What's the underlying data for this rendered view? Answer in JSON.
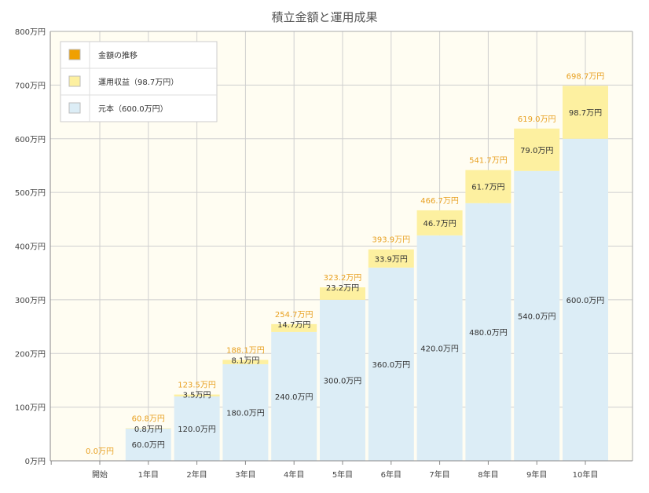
{
  "chart_data": {
    "type": "bar",
    "title": "積立金額と運用成果",
    "categories": [
      "開始",
      "1年目",
      "2年目",
      "3年目",
      "4年目",
      "5年目",
      "6年目",
      "7年目",
      "8年目",
      "9年目",
      "10年目"
    ],
    "y_tick_labels": [
      "0万円",
      "100万円",
      "200万円",
      "300万円",
      "400万円",
      "500万円",
      "600万円",
      "700万円",
      "800万円"
    ],
    "ylim": [
      0,
      800
    ],
    "stacked": true,
    "grid": true,
    "legend_position": "top-left",
    "legend": [
      {
        "name": "金額の推移",
        "color": "#f0a000"
      },
      {
        "name": "運用収益（98.7万円）",
        "color": "#fdf0a0"
      },
      {
        "name": "元本（600.0万円）",
        "color": "#dcedf6"
      }
    ],
    "series": [
      {
        "name": "元本",
        "color": "#dcedf6",
        "values": [
          0,
          60.0,
          120.0,
          180.0,
          240.0,
          300.0,
          360.0,
          420.0,
          480.0,
          540.0,
          600.0
        ],
        "labels": [
          "",
          "60.0万円",
          "120.0万円",
          "180.0万円",
          "240.0万円",
          "300.0万円",
          "360.0万円",
          "420.0万円",
          "480.0万円",
          "540.0万円",
          "600.0万円"
        ]
      },
      {
        "name": "運用収益",
        "color": "#fdf0a0",
        "values": [
          0,
          0.8,
          3.5,
          8.1,
          14.7,
          23.2,
          33.9,
          46.7,
          61.7,
          79.0,
          98.7
        ],
        "labels": [
          "",
          "0.8万円",
          "3.5万円",
          "8.1万円",
          "14.7万円",
          "23.2万円",
          "33.9万円",
          "46.7万円",
          "61.7万円",
          "79.0万円",
          "98.7万円"
        ]
      }
    ],
    "totals": [
      0.0,
      60.8,
      123.5,
      188.1,
      254.7,
      323.2,
      393.9,
      466.7,
      541.7,
      619.0,
      698.7
    ],
    "total_labels": [
      "0.0万円",
      "60.8万円",
      "123.5万円",
      "188.1万円",
      "254.7万円",
      "323.2万円",
      "393.9万円",
      "466.7万円",
      "541.7万円",
      "619.0万円",
      "698.7万円"
    ],
    "colors": {
      "plot_background": "#fffdf2",
      "grid": "#cfcfcf",
      "axis": "#888888",
      "total_label": "#e8a020"
    }
  }
}
